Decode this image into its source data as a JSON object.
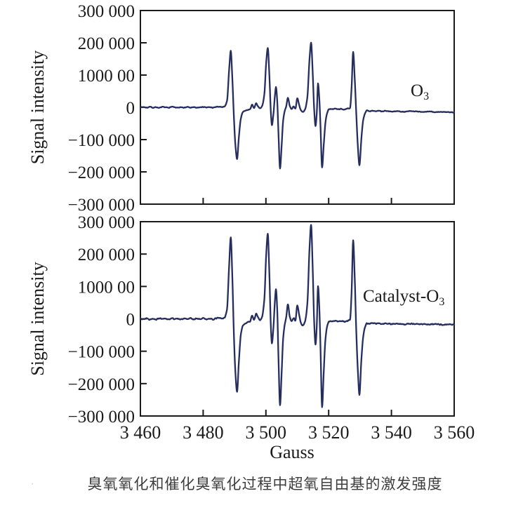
{
  "caption": {
    "text": "臭氧氧化和催化臭氧化过程中超氧自由基的激发强度",
    "stray_mark": "·"
  },
  "chart_data": {
    "type": "line",
    "title": "",
    "xlabel": "Gauss",
    "ylabel": "Signal intensity",
    "x_range": [
      3460,
      3560
    ],
    "x_ticks": [
      3460,
      3480,
      3500,
      3520,
      3540,
      3560
    ],
    "x_tick_labels": [
      "3 460",
      "3 480",
      "3 500",
      "3 520",
      "3 540",
      "3 560"
    ],
    "x_inner_ticks": [
      3480,
      3500,
      3520,
      3540
    ],
    "y_range": [
      -300000,
      300000
    ],
    "y_ticks": [
      300000,
      200000,
      100000,
      0,
      -100000,
      -200000,
      -300000
    ],
    "y_tick_labels": [
      "300 000",
      "200 000",
      "1000 00",
      "0",
      "−100 000",
      "−200 000",
      "−300 000"
    ],
    "y_inner_ticks": [
      200000,
      100000,
      0,
      -100000,
      -200000
    ],
    "grid": false,
    "legend_position": "inside-right",
    "line_color": "#262e60",
    "axis_color": "#1a1a1a",
    "panels": [
      {
        "series_name": "O3",
        "label": "O",
        "label_sub": "3",
        "noise_seed": 7,
        "noise_amp": 1300,
        "anchor_points": [
          [
            3460,
            0
          ],
          [
            3461,
            1000
          ],
          [
            3462,
            -1000
          ],
          [
            3463,
            1500
          ],
          [
            3464,
            -1000
          ],
          [
            3465,
            500
          ],
          [
            3466,
            -1500
          ],
          [
            3467,
            1000
          ],
          [
            3468,
            0
          ],
          [
            3469,
            -1000
          ],
          [
            3470,
            1500
          ],
          [
            3471,
            0
          ],
          [
            3472,
            -1500
          ],
          [
            3473,
            500
          ],
          [
            3474,
            -500
          ],
          [
            3475,
            1000
          ],
          [
            3476,
            -1000
          ],
          [
            3477,
            500
          ],
          [
            3478,
            -1500
          ],
          [
            3479,
            0
          ],
          [
            3480,
            1000
          ],
          [
            3481,
            -500
          ],
          [
            3482,
            500
          ],
          [
            3483,
            -1000
          ],
          [
            3484,
            500
          ],
          [
            3485,
            2000
          ],
          [
            3486,
            1000
          ],
          [
            3486.8,
            3000
          ],
          [
            3487.6,
            20000
          ],
          [
            3488.3,
            120000
          ],
          [
            3488.8,
            175000
          ],
          [
            3489.3,
            90000
          ],
          [
            3489.8,
            -30000
          ],
          [
            3490.3,
            -120000
          ],
          [
            3490.8,
            -160000
          ],
          [
            3491.4,
            -90000
          ],
          [
            3492,
            -35000
          ],
          [
            3492.7,
            -15000
          ],
          [
            3493.5,
            -10000
          ],
          [
            3494.3,
            -8000
          ],
          [
            3495,
            -5000
          ],
          [
            3495.6,
            8000
          ],
          [
            3496.2,
            -2000
          ],
          [
            3496.9,
            12000
          ],
          [
            3497.5,
            3000
          ],
          [
            3498.2,
            -3000
          ],
          [
            3498.8,
            5000
          ],
          [
            3499.5,
            40000
          ],
          [
            3500.1,
            140000
          ],
          [
            3500.6,
            183000
          ],
          [
            3501.1,
            100000
          ],
          [
            3501.6,
            -20000
          ],
          [
            3501.9,
            -55000
          ],
          [
            3502.4,
            -20000
          ],
          [
            3502.9,
            40000
          ],
          [
            3503.2,
            63000
          ],
          [
            3503.6,
            20000
          ],
          [
            3504,
            -80000
          ],
          [
            3504.5,
            -190000
          ],
          [
            3505,
            -120000
          ],
          [
            3505.5,
            -40000
          ],
          [
            3506,
            -12000
          ],
          [
            3506.5,
            5000
          ],
          [
            3507,
            30000
          ],
          [
            3507.6,
            5000
          ],
          [
            3508.2,
            -6000
          ],
          [
            3508.8,
            2000
          ],
          [
            3509.4,
            -4000
          ],
          [
            3510,
            28000
          ],
          [
            3510.6,
            8000
          ],
          [
            3511.2,
            -10000
          ],
          [
            3511.8,
            -15000
          ],
          [
            3512.4,
            -8000
          ],
          [
            3513.2,
            30000
          ],
          [
            3513.9,
            150000
          ],
          [
            3514.4,
            200000
          ],
          [
            3514.9,
            110000
          ],
          [
            3515.4,
            -10000
          ],
          [
            3515.8,
            -58000
          ],
          [
            3516.2,
            -20000
          ],
          [
            3516.6,
            74000
          ],
          [
            3517,
            30000
          ],
          [
            3517.4,
            -60000
          ],
          [
            3517.9,
            -187000
          ],
          [
            3518.4,
            -120000
          ],
          [
            3519,
            -45000
          ],
          [
            3519.6,
            -15000
          ],
          [
            3520.2,
            -5000
          ],
          [
            3521,
            -6000
          ],
          [
            3522,
            -4000
          ],
          [
            3523,
            -6000
          ],
          [
            3524,
            -5000
          ],
          [
            3525,
            -7000
          ],
          [
            3526,
            -4000
          ],
          [
            3526.8,
            -2000
          ],
          [
            3527.3,
            60000
          ],
          [
            3527.8,
            172000
          ],
          [
            3528.3,
            90000
          ],
          [
            3528.8,
            -20000
          ],
          [
            3529.3,
            -120000
          ],
          [
            3529.8,
            -180000
          ],
          [
            3530.4,
            -100000
          ],
          [
            3531,
            -40000
          ],
          [
            3531.6,
            -18000
          ],
          [
            3532.2,
            -10000
          ],
          [
            3533,
            -12000
          ],
          [
            3534,
            -10000
          ],
          [
            3535,
            -12000
          ],
          [
            3536,
            -11000
          ],
          [
            3537,
            -13000
          ],
          [
            3538,
            -11000
          ],
          [
            3539,
            -12000
          ],
          [
            3540,
            -13000
          ],
          [
            3542,
            -12000
          ],
          [
            3544,
            -14000
          ],
          [
            3546,
            -12000
          ],
          [
            3548,
            -13000
          ],
          [
            3550,
            -14000
          ],
          [
            3552,
            -13000
          ],
          [
            3554,
            -15000
          ],
          [
            3556,
            -14000
          ],
          [
            3558,
            -15000
          ],
          [
            3560,
            -16000
          ]
        ]
      },
      {
        "series_name": "Catalyst-O3",
        "label": "Catalyst-O",
        "label_sub": "3",
        "noise_seed": 13,
        "noise_amp": 1900,
        "anchor_points": [
          [
            3460,
            2000
          ],
          [
            3461,
            -1000
          ],
          [
            3462,
            2000
          ],
          [
            3463,
            -2000
          ],
          [
            3464,
            1000
          ],
          [
            3465,
            -2000
          ],
          [
            3466,
            2000
          ],
          [
            3467,
            -1000
          ],
          [
            3468,
            1000
          ],
          [
            3469,
            -2000
          ],
          [
            3470,
            2000
          ],
          [
            3471,
            -1000
          ],
          [
            3472,
            1000
          ],
          [
            3473,
            -2000
          ],
          [
            3474,
            1000
          ],
          [
            3475,
            -1000
          ],
          [
            3476,
            2000
          ],
          [
            3477,
            -2000
          ],
          [
            3478,
            1000
          ],
          [
            3479,
            -1000
          ],
          [
            3480,
            2000
          ],
          [
            3481,
            -1000
          ],
          [
            3482,
            1000
          ],
          [
            3483,
            -2000
          ],
          [
            3484,
            1000
          ],
          [
            3485,
            3000
          ],
          [
            3486,
            1000
          ],
          [
            3486.8,
            4000
          ],
          [
            3487.6,
            30000
          ],
          [
            3488.3,
            170000
          ],
          [
            3488.8,
            251000
          ],
          [
            3489.3,
            130000
          ],
          [
            3489.8,
            -50000
          ],
          [
            3490.3,
            -170000
          ],
          [
            3490.8,
            -225000
          ],
          [
            3491.4,
            -130000
          ],
          [
            3492,
            -50000
          ],
          [
            3492.7,
            -20000
          ],
          [
            3493.5,
            -14000
          ],
          [
            3494.3,
            -10000
          ],
          [
            3495,
            -7000
          ],
          [
            3495.6,
            10000
          ],
          [
            3496.2,
            -3000
          ],
          [
            3496.9,
            16000
          ],
          [
            3497.5,
            4000
          ],
          [
            3498.2,
            -4000
          ],
          [
            3498.8,
            7000
          ],
          [
            3499.5,
            60000
          ],
          [
            3500.1,
            200000
          ],
          [
            3500.6,
            262000
          ],
          [
            3501.1,
            140000
          ],
          [
            3501.6,
            -30000
          ],
          [
            3501.9,
            -75000
          ],
          [
            3502.4,
            -25000
          ],
          [
            3502.9,
            60000
          ],
          [
            3503.2,
            91000
          ],
          [
            3503.6,
            30000
          ],
          [
            3504,
            -120000
          ],
          [
            3504.5,
            -266000
          ],
          [
            3505,
            -170000
          ],
          [
            3505.5,
            -60000
          ],
          [
            3506,
            -18000
          ],
          [
            3506.5,
            8000
          ],
          [
            3507,
            45000
          ],
          [
            3507.6,
            8000
          ],
          [
            3508.2,
            -8000
          ],
          [
            3508.8,
            3000
          ],
          [
            3509.4,
            -5000
          ],
          [
            3510,
            42000
          ],
          [
            3510.6,
            12000
          ],
          [
            3511.2,
            -14000
          ],
          [
            3511.8,
            -20000
          ],
          [
            3512.4,
            -10000
          ],
          [
            3513.2,
            45000
          ],
          [
            3513.9,
            220000
          ],
          [
            3514.4,
            290000
          ],
          [
            3514.9,
            160000
          ],
          [
            3515.4,
            -15000
          ],
          [
            3515.8,
            -80000
          ],
          [
            3516.2,
            -25000
          ],
          [
            3516.6,
            102000
          ],
          [
            3517,
            40000
          ],
          [
            3517.4,
            -90000
          ],
          [
            3517.9,
            -273000
          ],
          [
            3518.4,
            -170000
          ],
          [
            3519,
            -60000
          ],
          [
            3519.6,
            -20000
          ],
          [
            3520.2,
            -8000
          ],
          [
            3521,
            -8000
          ],
          [
            3522,
            -6000
          ],
          [
            3523,
            -8000
          ],
          [
            3524,
            -7000
          ],
          [
            3525,
            -9000
          ],
          [
            3526,
            -6000
          ],
          [
            3526.8,
            -3000
          ],
          [
            3527.3,
            80000
          ],
          [
            3527.8,
            242000
          ],
          [
            3528.3,
            130000
          ],
          [
            3528.8,
            -40000
          ],
          [
            3529.3,
            -160000
          ],
          [
            3529.8,
            -234000
          ],
          [
            3530.4,
            -130000
          ],
          [
            3531,
            -55000
          ],
          [
            3531.6,
            -25000
          ],
          [
            3532.2,
            -14000
          ],
          [
            3533,
            -15000
          ],
          [
            3534,
            -13000
          ],
          [
            3535,
            -15000
          ],
          [
            3536,
            -14000
          ],
          [
            3537,
            -16000
          ],
          [
            3538,
            -14000
          ],
          [
            3539,
            -15000
          ],
          [
            3540,
            -16000
          ],
          [
            3542,
            -15000
          ],
          [
            3544,
            -17000
          ],
          [
            3546,
            -15000
          ],
          [
            3548,
            -16000
          ],
          [
            3550,
            -16000
          ],
          [
            3552,
            -18000
          ],
          [
            3554,
            -16000
          ],
          [
            3556,
            -18000
          ],
          [
            3558,
            -17000
          ],
          [
            3560,
            -18000
          ]
        ]
      }
    ]
  }
}
